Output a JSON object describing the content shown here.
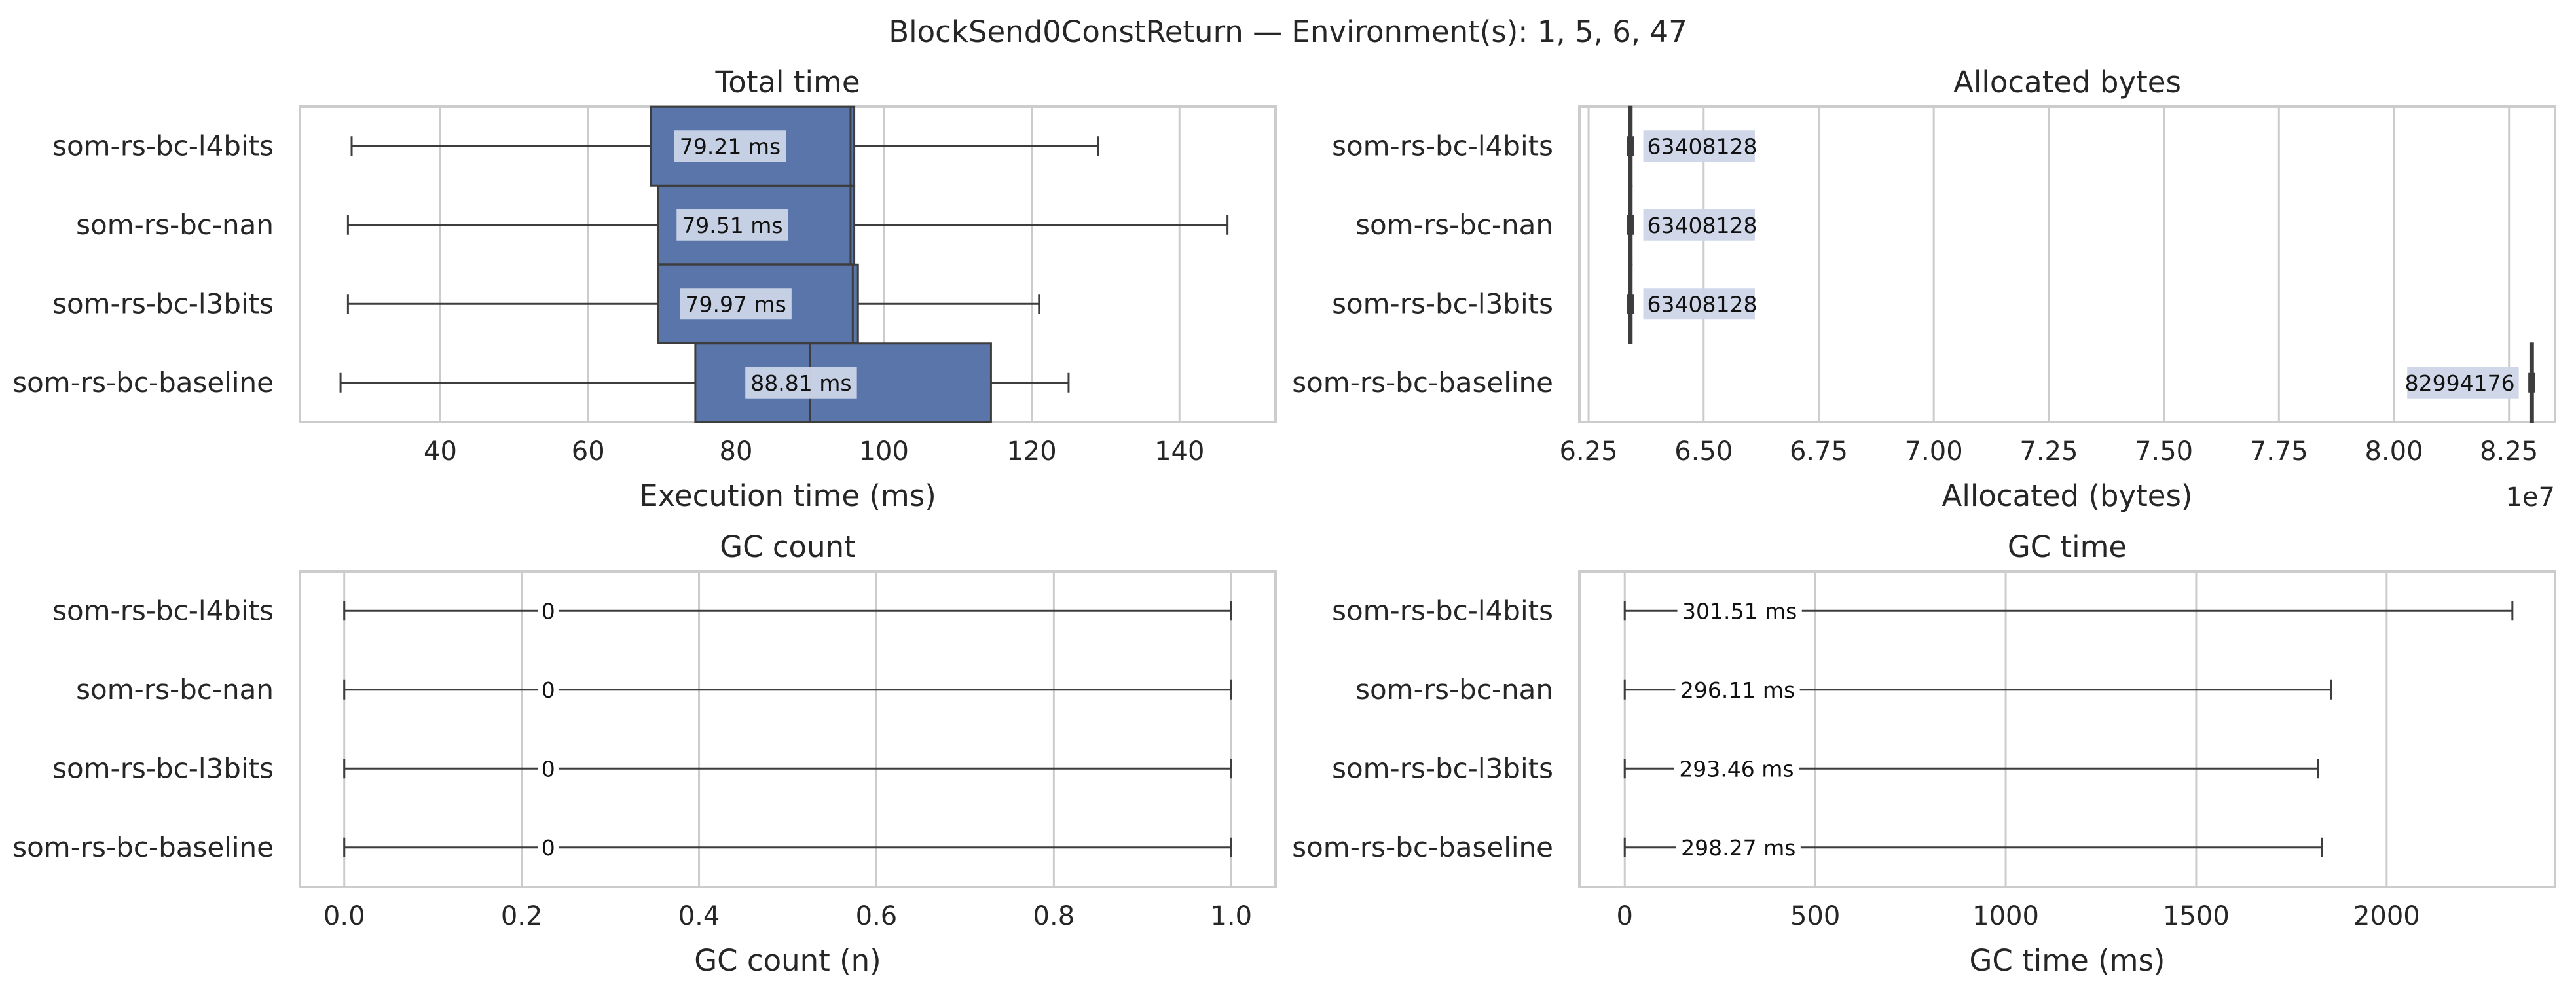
{
  "figure": {
    "suptitle": "BlockSend0ConstReturn — Environment(s): 1, 5, 6, 47"
  },
  "colors": {
    "box_fill": "#5975a9",
    "box_edge": "#3d3d3d",
    "label_bg": "#ccd5e8",
    "grid": "#cccccc",
    "frame": "#cccccc",
    "text": "#262626"
  },
  "chart_data": [
    {
      "type": "box",
      "title": "Total time",
      "xlabel": "Execution time (ms)",
      "ylabel": "",
      "grid": "vertical",
      "xlim": [
        21,
        153
      ],
      "xticks": [
        40,
        60,
        80,
        100,
        120,
        140
      ],
      "xtick_labels": [
        "40",
        "60",
        "80",
        "100",
        "120",
        "140"
      ],
      "categories": [
        "som-rs-bc-l4bits",
        "som-rs-bc-nan",
        "som-rs-bc-l3bits",
        "som-rs-bc-baseline"
      ],
      "boxes": [
        {
          "whisker_low": 28,
          "q1": 68.5,
          "median": 95.5,
          "q3": 96,
          "whisker_high": 129,
          "label": "79.21 ms",
          "label_x": 79.21
        },
        {
          "whisker_low": 27.5,
          "q1": 69.5,
          "median": 95.5,
          "q3": 96,
          "whisker_high": 146.5,
          "label": "79.51 ms",
          "label_x": 79.51
        },
        {
          "whisker_low": 27.5,
          "q1": 69.5,
          "median": 95.8,
          "q3": 96.5,
          "whisker_high": 121,
          "label": "79.97 ms",
          "label_x": 79.97
        },
        {
          "whisker_low": 26.5,
          "q1": 74.5,
          "median": 90,
          "q3": 114.5,
          "whisker_high": 125,
          "label": "88.81 ms",
          "label_x": 88.81
        }
      ]
    },
    {
      "type": "box",
      "title": "Allocated bytes",
      "xlabel": "Allocated (bytes)",
      "ylabel": "",
      "grid": "vertical",
      "xlim": [
        6.23,
        8.35
      ],
      "xticks": [
        6.25,
        6.5,
        6.75,
        7.0,
        7.25,
        7.5,
        7.75,
        8.0,
        8.25
      ],
      "xtick_labels": [
        "6.25",
        "6.50",
        "6.75",
        "7.00",
        "7.25",
        "7.50",
        "7.75",
        "8.00",
        "8.25"
      ],
      "offset_text": "1e7",
      "categories": [
        "som-rs-bc-l4bits",
        "som-rs-bc-nan",
        "som-rs-bc-l3bits",
        "som-rs-bc-baseline"
      ],
      "boxes": [
        {
          "whisker_low": 6.335,
          "q1": 6.3375,
          "median": 6.3408,
          "q3": 6.3435,
          "whisker_high": 6.346,
          "label": "63408128",
          "label_x": 6.3408,
          "label_side": "right"
        },
        {
          "whisker_low": 6.335,
          "q1": 6.3375,
          "median": 6.3408,
          "q3": 6.3435,
          "whisker_high": 6.346,
          "label": "63408128",
          "label_x": 6.3408,
          "label_side": "right"
        },
        {
          "whisker_low": 6.335,
          "q1": 6.3375,
          "median": 6.3408,
          "q3": 6.3435,
          "whisker_high": 6.346,
          "label": "63408128",
          "label_x": 6.3408,
          "label_side": "right"
        },
        {
          "whisker_low": 8.294,
          "q1": 8.2965,
          "median": 8.2994,
          "q3": 8.302,
          "whisker_high": 8.305,
          "label": "82994176",
          "label_x": 8.2994,
          "label_side": "left"
        }
      ]
    },
    {
      "type": "box",
      "title": "GC count",
      "xlabel": "GC count (n)",
      "ylabel": "",
      "grid": "vertical",
      "xlim": [
        -0.05,
        1.05
      ],
      "xticks": [
        0.0,
        0.2,
        0.4,
        0.6,
        0.8,
        1.0
      ],
      "xtick_labels": [
        "0.0",
        "0.2",
        "0.4",
        "0.6",
        "0.8",
        "1.0"
      ],
      "categories": [
        "som-rs-bc-l4bits",
        "som-rs-bc-nan",
        "som-rs-bc-l3bits",
        "som-rs-bc-baseline"
      ],
      "boxes": [
        {
          "whisker_low": 0,
          "q1": 0,
          "median": 0,
          "q3": 0,
          "whisker_high": 1,
          "label": "0",
          "label_x": 0.23
        },
        {
          "whisker_low": 0,
          "q1": 0,
          "median": 0,
          "q3": 0,
          "whisker_high": 1,
          "label": "0",
          "label_x": 0.23
        },
        {
          "whisker_low": 0,
          "q1": 0,
          "median": 0,
          "q3": 0,
          "whisker_high": 1,
          "label": "0",
          "label_x": 0.23
        },
        {
          "whisker_low": 0,
          "q1": 0,
          "median": 0,
          "q3": 0,
          "whisker_high": 1,
          "label": "0",
          "label_x": 0.23
        }
      ]
    },
    {
      "type": "box",
      "title": "GC time",
      "xlabel": "GC time (ms)",
      "ylabel": "",
      "grid": "vertical",
      "xlim": [
        -119,
        2442
      ],
      "xticks": [
        0,
        500,
        1000,
        1500,
        2000
      ],
      "xtick_labels": [
        "0",
        "500",
        "1000",
        "1500",
        "2000"
      ],
      "categories": [
        "som-rs-bc-l4bits",
        "som-rs-bc-nan",
        "som-rs-bc-l3bits",
        "som-rs-bc-baseline"
      ],
      "boxes": [
        {
          "whisker_low": 0,
          "q1": 0,
          "median": 0,
          "q3": 0,
          "whisker_high": 2330,
          "label": "301.51 ms",
          "label_x": 301.51
        },
        {
          "whisker_low": 0,
          "q1": 0,
          "median": 0,
          "q3": 0,
          "whisker_high": 1855,
          "label": "296.11 ms",
          "label_x": 296.11
        },
        {
          "whisker_low": 0,
          "q1": 0,
          "median": 0,
          "q3": 0,
          "whisker_high": 1820,
          "label": "293.46 ms",
          "label_x": 293.46
        },
        {
          "whisker_low": 0,
          "q1": 0,
          "median": 0,
          "q3": 0,
          "whisker_high": 1830,
          "label": "298.27 ms",
          "label_x": 298.27
        }
      ]
    }
  ]
}
